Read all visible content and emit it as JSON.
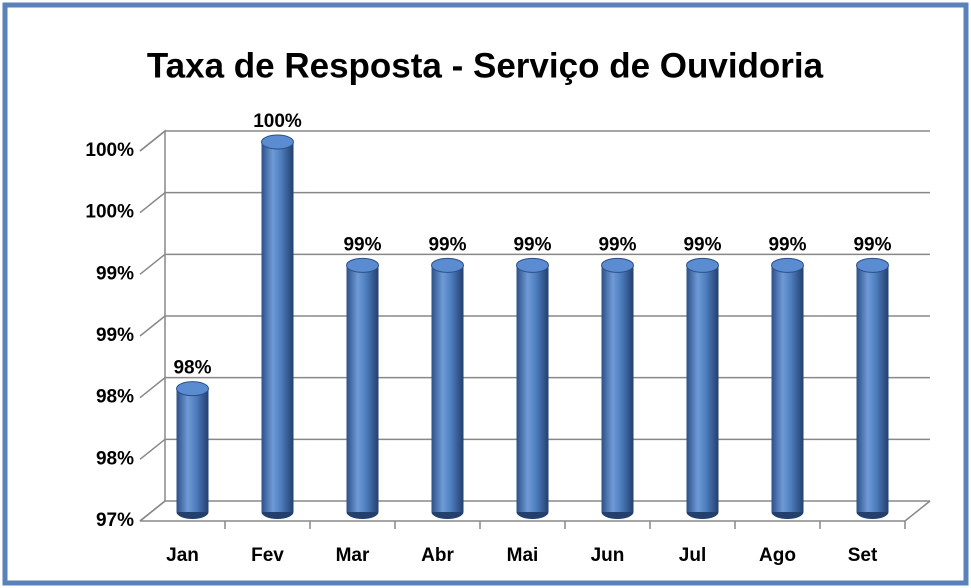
{
  "chart_data": {
    "type": "bar",
    "title": "Taxa de Resposta - Serviço de Ouvidoria",
    "categories": [
      "Jan",
      "Fev",
      "Mar",
      "Abr",
      "Mai",
      "Jun",
      "Jul",
      "Ago",
      "Set"
    ],
    "values": [
      98,
      100,
      99,
      99,
      99,
      99,
      99,
      99,
      99
    ],
    "value_labels": [
      "98%",
      "100%",
      "99%",
      "99%",
      "99%",
      "99%",
      "99%",
      "99%",
      "99%"
    ],
    "color": "#4f81bd",
    "ylim": [
      97,
      100
    ],
    "yticks": [
      {
        "value": 97,
        "label": "97%"
      },
      {
        "value": 97.5,
        "label": "98%"
      },
      {
        "value": 98,
        "label": "98%"
      },
      {
        "value": 98.5,
        "label": "99%"
      },
      {
        "value": 99,
        "label": "99%"
      },
      {
        "value": 99.5,
        "label": "100%"
      },
      {
        "value": 100,
        "label": "100%"
      }
    ],
    "grid": true
  }
}
